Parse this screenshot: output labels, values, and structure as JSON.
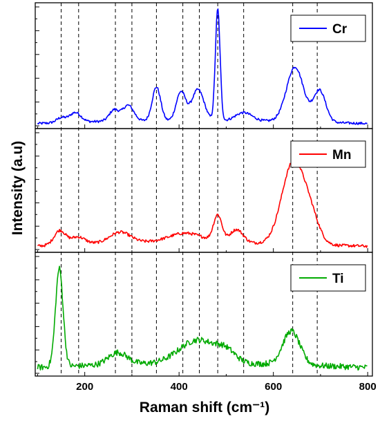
{
  "chart_data": {
    "type": "line",
    "layout": "stacked-panels",
    "xlabel": "Raman shift (cm⁻¹)",
    "ylabel": "Intensity (a.u)",
    "xlim": [
      95,
      810
    ],
    "xticks": [
      200,
      400,
      600,
      800
    ],
    "y_tick_labels_shown": false,
    "reference_lines_x": [
      150,
      187,
      265,
      300,
      352,
      408,
      443,
      482,
      537,
      641,
      693
    ],
    "reference_line_style": "dashed",
    "legend_placement": "top-right of each panel",
    "series": [
      {
        "name": "Cr",
        "color": "#0000ff",
        "ylim": [
          0,
          100
        ],
        "noise": 1.0,
        "baseline": [
          [
            95,
            3
          ],
          [
            250,
            5
          ],
          [
            600,
            5
          ],
          [
            800,
            3
          ]
        ],
        "peaks": [
          [
            150,
            4,
            10
          ],
          [
            180,
            8,
            12
          ],
          [
            262,
            9,
            10
          ],
          [
            292,
            13,
            12
          ],
          [
            352,
            28,
            9
          ],
          [
            404,
            24,
            10
          ],
          [
            440,
            26,
            13
          ],
          [
            482,
            92,
            5
          ],
          [
            537,
            7,
            18
          ],
          [
            646,
            45,
            18
          ],
          [
            698,
            26,
            13
          ]
        ]
      },
      {
        "name": "Mn",
        "color": "#ff0000",
        "ylim": [
          0,
          100
        ],
        "noise": 1.2,
        "baseline": [
          [
            95,
            4
          ],
          [
            200,
            6
          ],
          [
            400,
            8
          ],
          [
            600,
            6
          ],
          [
            800,
            4
          ]
        ],
        "peaks": [
          [
            147,
            12,
            12
          ],
          [
            185,
            6,
            15
          ],
          [
            275,
            9,
            22
          ],
          [
            415,
            7,
            35
          ],
          [
            482,
            22,
            9
          ],
          [
            522,
            11,
            14
          ],
          [
            642,
            68,
            24
          ],
          [
            680,
            18,
            18
          ]
        ]
      },
      {
        "name": "Ti",
        "color": "#00aa00",
        "ylim": [
          0,
          100
        ],
        "noise": 2.5,
        "baseline": [
          [
            95,
            6
          ],
          [
            300,
            9
          ],
          [
            600,
            9
          ],
          [
            800,
            6
          ]
        ],
        "peaks": [
          [
            146,
            82,
            8
          ],
          [
            270,
            10,
            20
          ],
          [
            440,
            20,
            40
          ],
          [
            500,
            8,
            20
          ],
          [
            638,
            28,
            18
          ]
        ]
      }
    ]
  }
}
